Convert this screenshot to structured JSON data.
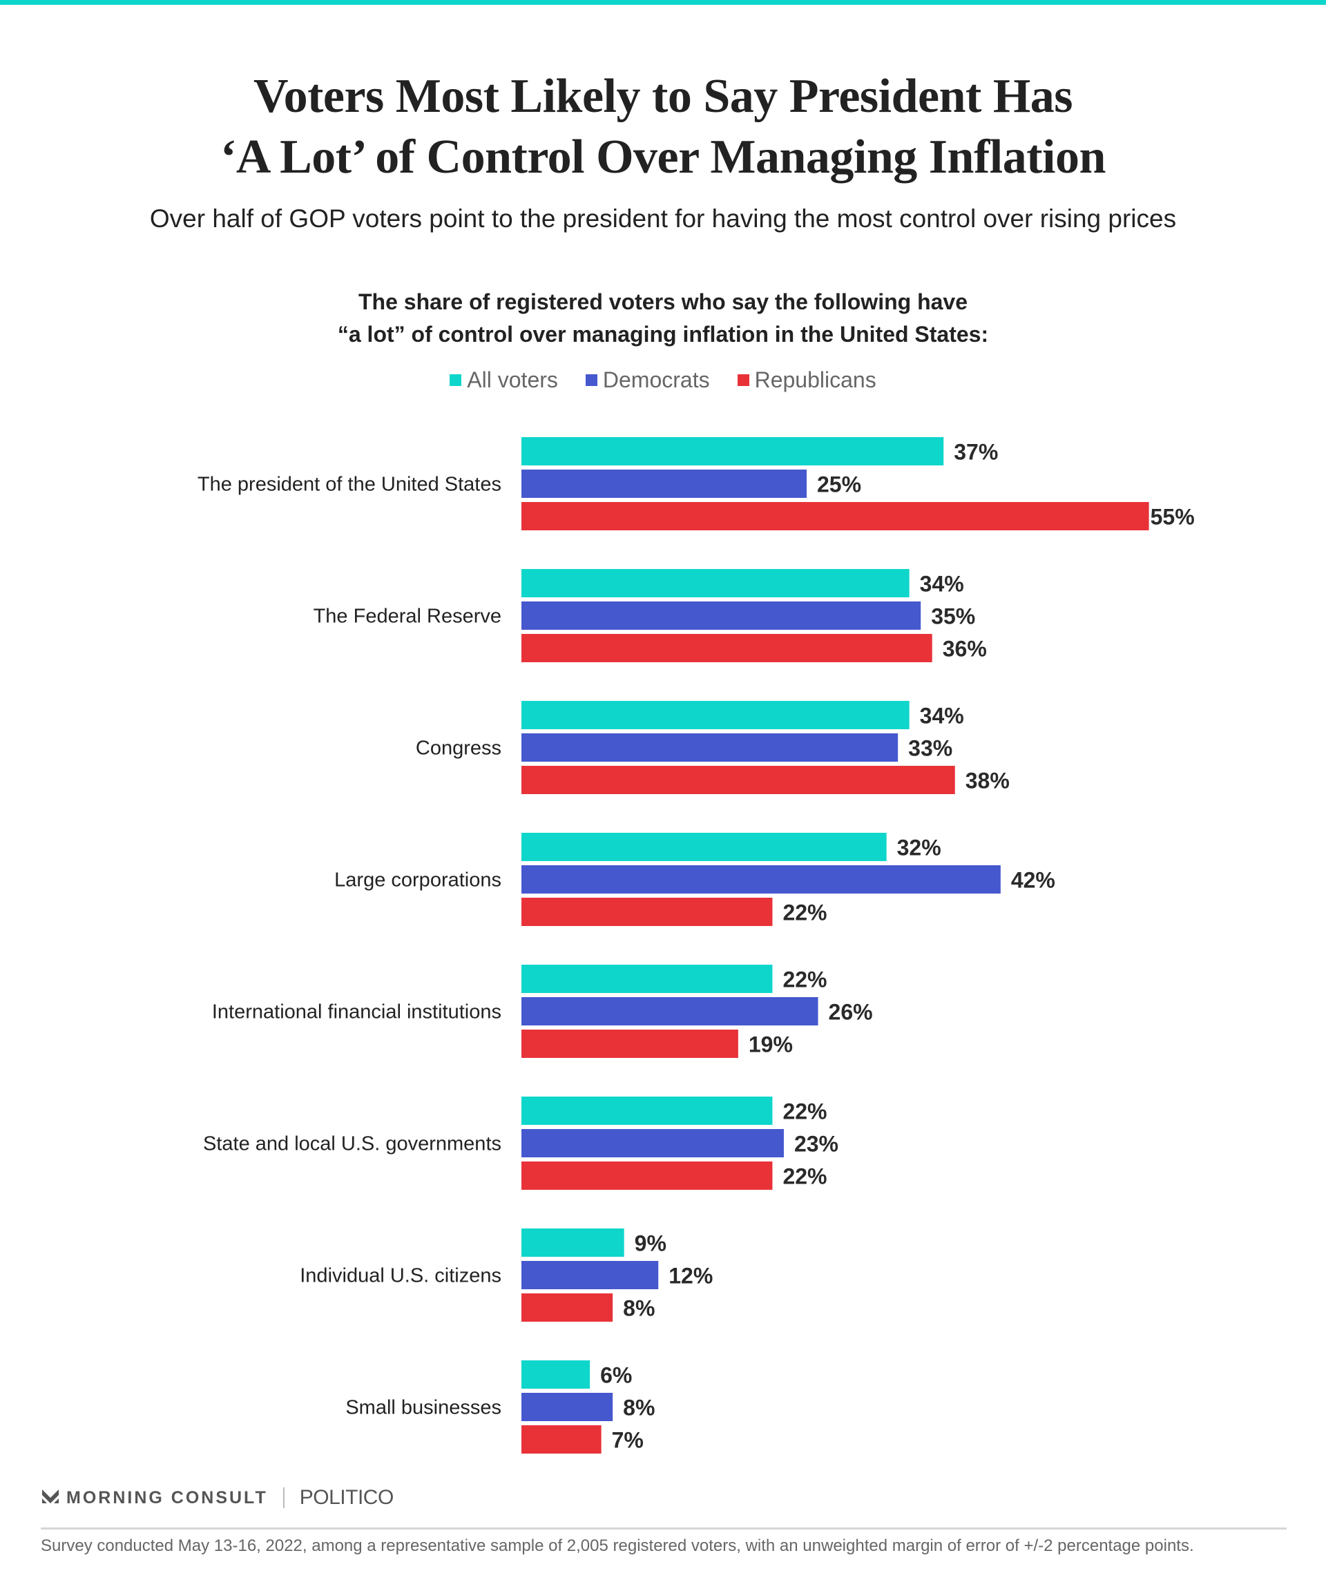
{
  "title_lines": [
    "Voters Most Likely to Say President Has",
    "‘A Lot’ of Control Over Managing Inflation"
  ],
  "subtitle": "Over half of GOP voters point to the president for having the most control over rising prices",
  "chart_data": {
    "type": "bar",
    "orientation": "horizontal",
    "title": "The share of registered voters who say the following have “a lot” of control over managing inflation in the United States:",
    "title_lines": [
      "The share of registered voters who say the following have",
      "“a lot” of control over managing inflation in the United States:"
    ],
    "categories": [
      "The president of the United States",
      "The Federal Reserve",
      "Congress",
      "Large corporations",
      "International financial institutions",
      "State and local U.S. governments",
      "Individual U.S. citizens",
      "Small businesses"
    ],
    "series": [
      {
        "name": "All voters",
        "color": "#0fd6cb",
        "values": [
          37,
          34,
          34,
          32,
          22,
          22,
          9,
          6
        ]
      },
      {
        "name": "Democrats",
        "color": "#4658ce",
        "values": [
          25,
          35,
          33,
          42,
          26,
          23,
          12,
          8
        ]
      },
      {
        "name": "Republicans",
        "color": "#e83238",
        "values": [
          55,
          36,
          38,
          22,
          19,
          22,
          8,
          7
        ]
      }
    ],
    "value_suffix": "%",
    "legend_position": "top",
    "grid": false,
    "axis_visible": false
  },
  "accent_color": "#0fd6cb",
  "footer": {
    "logo_morning_consult": "MORNING CONSULT",
    "logo_politico": "POLITICO",
    "note": "Survey conducted May 13-16, 2022, among a representative sample of 2,005 registered voters, with an unweighted margin of error of +/-2 percentage points."
  }
}
